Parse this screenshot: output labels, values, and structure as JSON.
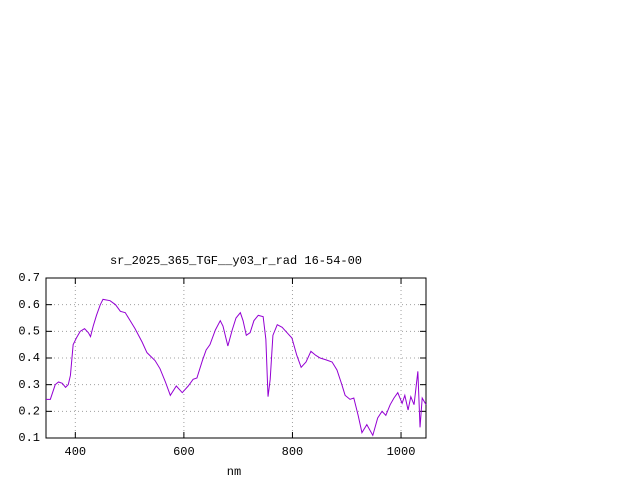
{
  "chart_data": {
    "type": "line",
    "title": "sr_2025_365_TGF__y03_r_rad 16-54-00",
    "x_label": "nm",
    "x": [
      346,
      354,
      363,
      369,
      376,
      382,
      387,
      391,
      396,
      402,
      409,
      417,
      424,
      428,
      433,
      439,
      446,
      451,
      464,
      474,
      483,
      492,
      501,
      510,
      523,
      532,
      547,
      556,
      566,
      575,
      586,
      597,
      608,
      617,
      624,
      634,
      641,
      648,
      658,
      667,
      672,
      681,
      689,
      696,
      704,
      709,
      715,
      722,
      729,
      737,
      746,
      751,
      755,
      759,
      764,
      772,
      781,
      790,
      799,
      808,
      816,
      825,
      834,
      843,
      851,
      862,
      873,
      882,
      891,
      897,
      906,
      913,
      921,
      928,
      937,
      948,
      957,
      965,
      972,
      980,
      987,
      994,
      1002,
      1007,
      1013,
      1018,
      1024,
      1031,
      1035,
      1039,
      1046
    ],
    "series": [
      {
        "color": "#9400d3",
        "values": [
          0.245,
          0.245,
          0.3,
          0.31,
          0.305,
          0.29,
          0.3,
          0.335,
          0.45,
          0.475,
          0.5,
          0.51,
          0.495,
          0.48,
          0.52,
          0.56,
          0.6,
          0.62,
          0.615,
          0.6,
          0.575,
          0.57,
          0.54,
          0.51,
          0.46,
          0.42,
          0.39,
          0.36,
          0.31,
          0.26,
          0.295,
          0.27,
          0.295,
          0.32,
          0.325,
          0.39,
          0.43,
          0.45,
          0.505,
          0.54,
          0.52,
          0.445,
          0.505,
          0.55,
          0.57,
          0.54,
          0.485,
          0.495,
          0.54,
          0.56,
          0.555,
          0.47,
          0.255,
          0.32,
          0.485,
          0.525,
          0.515,
          0.495,
          0.475,
          0.41,
          0.365,
          0.385,
          0.425,
          0.41,
          0.4,
          0.393,
          0.385,
          0.355,
          0.3,
          0.26,
          0.245,
          0.25,
          0.185,
          0.12,
          0.15,
          0.11,
          0.175,
          0.2,
          0.185,
          0.225,
          0.25,
          0.27,
          0.23,
          0.26,
          0.205,
          0.255,
          0.225,
          0.35,
          0.14,
          0.25,
          0.225
        ]
      }
    ],
    "xlim": [
      346,
      1046
    ],
    "xticks": [
      400,
      600,
      800,
      1000
    ],
    "ylim": [
      0.1,
      0.7
    ],
    "yticks": [
      0.1,
      0.2,
      0.3,
      0.4,
      0.5,
      0.6,
      0.7
    ],
    "grid": true
  }
}
